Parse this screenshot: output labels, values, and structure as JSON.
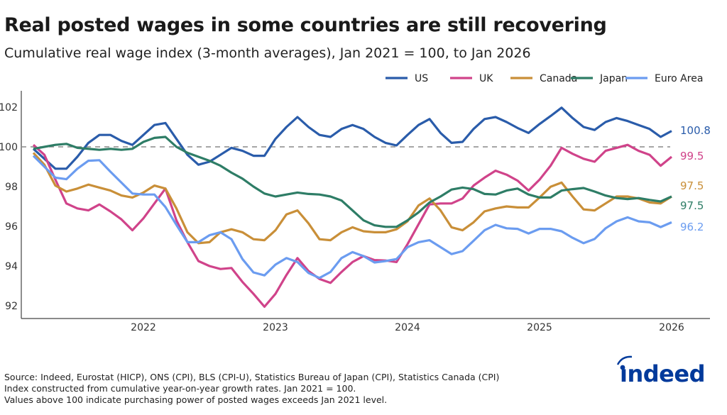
{
  "title": "Real posted wages in some countries are still recovering",
  "subtitle": "Cumulative real wage index (3-month averages), Jan 2021 = 100, to Jan 2026",
  "footer": [
    "Source: Indeed, Eurostat (HICP), ONS (CPI), BLS (CPI-U), Statistics Bureau of Japan (CPI), Statistics Canada (CPI)",
    "Index constructed from cumulative year-on-year growth rates. Jan 2021 = 100.",
    "Values above 100 indicate purchasing power of posted wages exceeds Jan 2021 level."
  ],
  "logo_text": "indeed",
  "logo_color": "#003a9b",
  "chart_data": {
    "type": "line",
    "title": "Real posted wages in some countries are still recovering",
    "xlabel": "",
    "ylabel": "",
    "ylim": [
      91.5,
      102.8
    ],
    "reference_line": 100,
    "grid": false,
    "legend_position": "top-right",
    "x_ticks": [
      "2022",
      "2023",
      "2024",
      "2025",
      "2026"
    ],
    "y_ticks": [
      "92",
      "94",
      "96",
      "98",
      "100",
      "102"
    ],
    "x": [
      "2021-03",
      "2021-04",
      "2021-05",
      "2021-06",
      "2021-07",
      "2021-08",
      "2021-09",
      "2021-10",
      "2021-11",
      "2021-12",
      "2022-01",
      "2022-02",
      "2022-03",
      "2022-04",
      "2022-05",
      "2022-06",
      "2022-07",
      "2022-08",
      "2022-09",
      "2022-10",
      "2022-11",
      "2022-12",
      "2023-01",
      "2023-02",
      "2023-03",
      "2023-04",
      "2023-05",
      "2023-06",
      "2023-07",
      "2023-08",
      "2023-09",
      "2023-10",
      "2023-11",
      "2023-12",
      "2024-01",
      "2024-02",
      "2024-03",
      "2024-04",
      "2024-05",
      "2024-06",
      "2024-07",
      "2024-08",
      "2024-09",
      "2024-10",
      "2024-11",
      "2024-12",
      "2025-01",
      "2025-02",
      "2025-03",
      "2025-04",
      "2025-05",
      "2025-06",
      "2025-07",
      "2025-08",
      "2025-09",
      "2025-10",
      "2025-11",
      "2025-12",
      "2026-01"
    ],
    "series": [
      {
        "name": "US",
        "color": "#2a5caa",
        "end_label": "100.8",
        "values": [
          99.9,
          99.4,
          98.9,
          98.9,
          99.5,
          100.2,
          100.6,
          100.6,
          100.3,
          100.1,
          100.6,
          101.1,
          101.2,
          100.4,
          99.6,
          99.1,
          99.25,
          99.6,
          99.95,
          99.8,
          99.55,
          99.55,
          100.4,
          101.0,
          101.5,
          101.0,
          100.6,
          100.5,
          100.9,
          101.1,
          100.9,
          100.5,
          100.2,
          100.07,
          100.6,
          101.1,
          101.4,
          100.7,
          100.2,
          100.25,
          100.9,
          101.4,
          101.5,
          101.25,
          100.95,
          100.7,
          101.15,
          101.55,
          101.97,
          101.45,
          101.0,
          100.85,
          101.25,
          101.45,
          101.3,
          101.1,
          100.9,
          100.5,
          100.8
        ]
      },
      {
        "name": "UK",
        "color": "#d0438a",
        "end_label": "99.5",
        "values": [
          100.1,
          99.6,
          98.35,
          97.15,
          96.9,
          96.8,
          97.1,
          96.75,
          96.35,
          95.8,
          96.4,
          97.15,
          97.9,
          96.3,
          95.2,
          94.25,
          94.0,
          93.85,
          93.9,
          93.2,
          92.6,
          91.95,
          92.6,
          93.55,
          94.4,
          93.75,
          93.35,
          93.15,
          93.7,
          94.2,
          94.5,
          94.3,
          94.28,
          94.2,
          95.1,
          96.1,
          97.1,
          97.15,
          97.15,
          97.4,
          98.05,
          98.45,
          98.8,
          98.6,
          98.3,
          97.8,
          98.35,
          99.05,
          99.95,
          99.65,
          99.4,
          99.25,
          99.8,
          99.95,
          100.1,
          99.8,
          99.6,
          99.05,
          99.5
        ]
      },
      {
        "name": "Canada",
        "color": "#c98f38",
        "end_label": "97.5",
        "values": [
          99.7,
          99.1,
          98.05,
          97.75,
          97.9,
          98.1,
          97.95,
          97.8,
          97.55,
          97.45,
          97.7,
          98.05,
          97.9,
          96.9,
          95.7,
          95.15,
          95.2,
          95.7,
          95.85,
          95.7,
          95.35,
          95.3,
          95.8,
          96.6,
          96.8,
          96.15,
          95.35,
          95.3,
          95.7,
          95.95,
          95.75,
          95.7,
          95.7,
          95.85,
          96.25,
          97.05,
          97.4,
          96.8,
          95.95,
          95.8,
          96.2,
          96.75,
          96.9,
          97.0,
          96.95,
          96.95,
          97.45,
          97.99,
          98.2,
          97.5,
          96.85,
          96.8,
          97.15,
          97.5,
          97.5,
          97.4,
          97.2,
          97.15,
          97.5
        ]
      },
      {
        "name": "Japan",
        "color": "#2e7d66",
        "end_label": "97.5",
        "values": [
          99.9,
          100.0,
          100.1,
          100.15,
          99.95,
          99.9,
          99.85,
          99.9,
          99.85,
          99.9,
          100.25,
          100.45,
          100.5,
          100.0,
          99.7,
          99.5,
          99.3,
          99.05,
          98.7,
          98.4,
          98.0,
          97.65,
          97.5,
          97.6,
          97.7,
          97.63,
          97.6,
          97.5,
          97.3,
          96.8,
          96.3,
          96.05,
          95.97,
          95.97,
          96.3,
          96.7,
          97.2,
          97.5,
          97.85,
          97.95,
          97.87,
          97.63,
          97.6,
          97.8,
          97.9,
          97.6,
          97.45,
          97.45,
          97.8,
          97.87,
          97.93,
          97.75,
          97.55,
          97.42,
          97.37,
          97.42,
          97.33,
          97.25,
          97.5
        ]
      },
      {
        "name": "Euro Area",
        "color": "#6b9cf0",
        "end_label": "96.2",
        "values": [
          99.55,
          99.0,
          98.45,
          98.37,
          98.9,
          99.3,
          99.33,
          98.75,
          98.2,
          97.65,
          97.6,
          97.6,
          96.97,
          96.07,
          95.2,
          95.2,
          95.55,
          95.7,
          95.35,
          94.35,
          93.68,
          93.53,
          94.07,
          94.4,
          94.2,
          93.65,
          93.4,
          93.7,
          94.4,
          94.7,
          94.5,
          94.18,
          94.25,
          94.35,
          94.95,
          95.2,
          95.3,
          94.95,
          94.6,
          94.75,
          95.27,
          95.8,
          96.07,
          95.9,
          95.87,
          95.64,
          95.87,
          95.87,
          95.75,
          95.42,
          95.15,
          95.36,
          95.9,
          96.25,
          96.45,
          96.25,
          96.2,
          95.96,
          96.2
        ]
      }
    ]
  }
}
